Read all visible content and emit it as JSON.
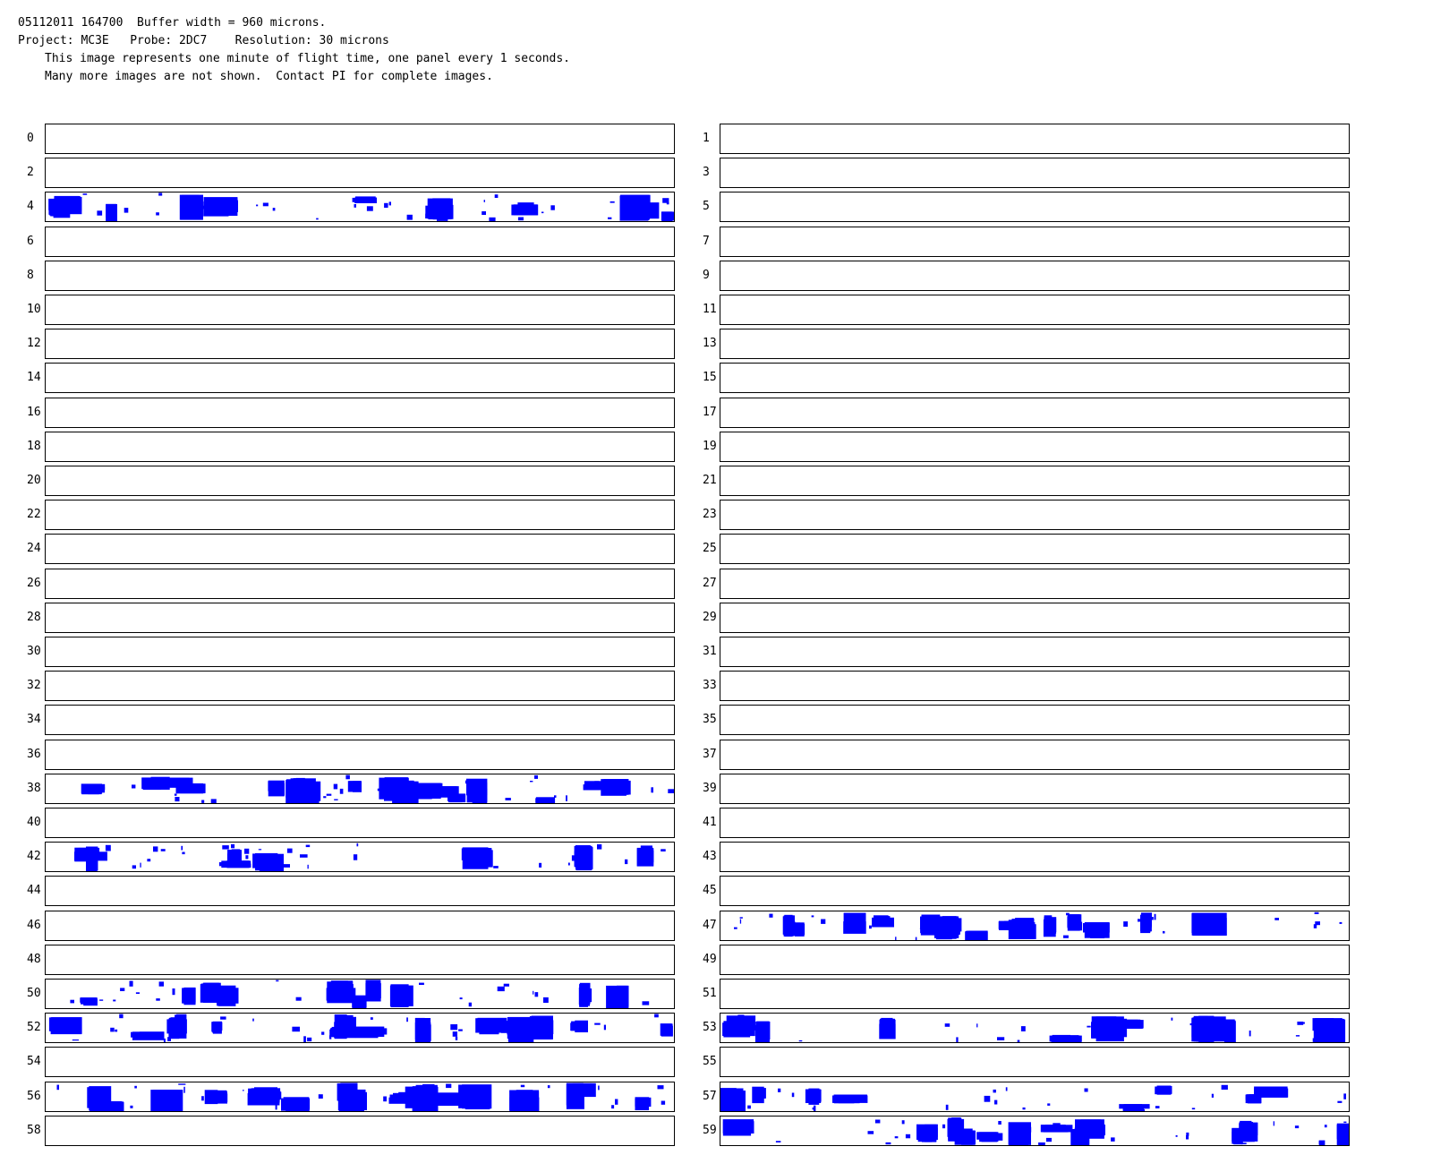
{
  "header": {
    "line1": "05112011 164700  Buffer width = 960 microns.",
    "line2": "Project: MC3E   Probe: 2DC7    Resolution: 30 microns",
    "line3": "This image represents one minute of flight time, one panel every 1 seconds.",
    "line4": "Many more images are not shown.  Contact PI for complete images."
  },
  "particle_color": "#0000ff",
  "panels": [
    {
      "label": "0",
      "has_particles": false
    },
    {
      "label": "1",
      "has_particles": false
    },
    {
      "label": "2",
      "has_particles": false
    },
    {
      "label": "3",
      "has_particles": false
    },
    {
      "label": "4",
      "has_particles": true
    },
    {
      "label": "5",
      "has_particles": false
    },
    {
      "label": "6",
      "has_particles": false
    },
    {
      "label": "7",
      "has_particles": false
    },
    {
      "label": "8",
      "has_particles": false
    },
    {
      "label": "9",
      "has_particles": false
    },
    {
      "label": "10",
      "has_particles": false
    },
    {
      "label": "11",
      "has_particles": false
    },
    {
      "label": "12",
      "has_particles": false
    },
    {
      "label": "13",
      "has_particles": false
    },
    {
      "label": "14",
      "has_particles": false
    },
    {
      "label": "15",
      "has_particles": false
    },
    {
      "label": "16",
      "has_particles": false
    },
    {
      "label": "17",
      "has_particles": false
    },
    {
      "label": "18",
      "has_particles": false
    },
    {
      "label": "19",
      "has_particles": false
    },
    {
      "label": "20",
      "has_particles": false
    },
    {
      "label": "21",
      "has_particles": false
    },
    {
      "label": "22",
      "has_particles": false
    },
    {
      "label": "23",
      "has_particles": false
    },
    {
      "label": "24",
      "has_particles": false
    },
    {
      "label": "25",
      "has_particles": false
    },
    {
      "label": "26",
      "has_particles": false
    },
    {
      "label": "27",
      "has_particles": false
    },
    {
      "label": "28",
      "has_particles": false
    },
    {
      "label": "29",
      "has_particles": false
    },
    {
      "label": "30",
      "has_particles": false
    },
    {
      "label": "31",
      "has_particles": false
    },
    {
      "label": "32",
      "has_particles": false
    },
    {
      "label": "33",
      "has_particles": false
    },
    {
      "label": "34",
      "has_particles": false
    },
    {
      "label": "35",
      "has_particles": false
    },
    {
      "label": "36",
      "has_particles": false
    },
    {
      "label": "37",
      "has_particles": false
    },
    {
      "label": "38",
      "has_particles": true
    },
    {
      "label": "39",
      "has_particles": false
    },
    {
      "label": "40",
      "has_particles": false
    },
    {
      "label": "41",
      "has_particles": false
    },
    {
      "label": "42",
      "has_particles": true
    },
    {
      "label": "43",
      "has_particles": false
    },
    {
      "label": "44",
      "has_particles": false
    },
    {
      "label": "45",
      "has_particles": false
    },
    {
      "label": "46",
      "has_particles": false
    },
    {
      "label": "47",
      "has_particles": true
    },
    {
      "label": "48",
      "has_particles": false
    },
    {
      "label": "49",
      "has_particles": false
    },
    {
      "label": "50",
      "has_particles": true
    },
    {
      "label": "51",
      "has_particles": false
    },
    {
      "label": "52",
      "has_particles": true
    },
    {
      "label": "53",
      "has_particles": true
    },
    {
      "label": "54",
      "has_particles": false
    },
    {
      "label": "55",
      "has_particles": false
    },
    {
      "label": "56",
      "has_particles": true
    },
    {
      "label": "57",
      "has_particles": true
    },
    {
      "label": "58",
      "has_particles": false
    },
    {
      "label": "59",
      "has_particles": true
    }
  ]
}
